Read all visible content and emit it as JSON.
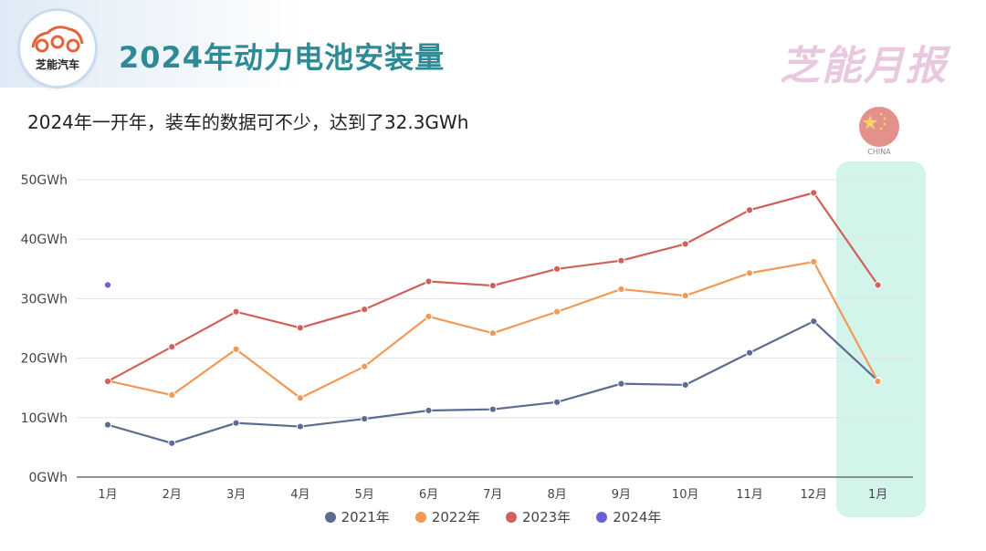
{
  "header": {
    "logo_text": "芝能汽车",
    "title": "2024年动力电池安装量",
    "brand": "芝能月报"
  },
  "subtitle": "2024年一开年，装车的数据可不少，达到了32.3GWh",
  "flag": {
    "label": "CHINA",
    "colors": [
      "#e3918a",
      "#f3d36b"
    ]
  },
  "highlight_color": "#d2f4ea",
  "chart_data": {
    "type": "line",
    "title": "2024年动力电池安装量",
    "categories": [
      "1月",
      "2月",
      "3月",
      "4月",
      "5月",
      "6月",
      "7月",
      "8月",
      "9月",
      "10月",
      "11月",
      "12月",
      "1月"
    ],
    "y_ticks": [
      "0GWh",
      "10GWh",
      "20GWh",
      "30GWh",
      "40GWh",
      "50GWh"
    ],
    "ylim": [
      0,
      50
    ],
    "grid": true,
    "legend_position": "bottom",
    "series": [
      {
        "name": "2021年",
        "color": "#5c6b91",
        "values": [
          8.8,
          5.7,
          9.1,
          8.5,
          9.8,
          11.2,
          11.4,
          12.6,
          15.7,
          15.5,
          20.9,
          26.2,
          16.2
        ]
      },
      {
        "name": "2022年",
        "color": "#f09a55",
        "values": [
          16.2,
          13.8,
          21.5,
          13.3,
          18.6,
          27.0,
          24.2,
          27.8,
          31.6,
          30.5,
          34.3,
          36.2,
          16.1
        ]
      },
      {
        "name": "2023年",
        "color": "#d0605a",
        "values": [
          16.1,
          21.9,
          27.8,
          25.1,
          28.2,
          32.9,
          32.2,
          35.0,
          36.4,
          39.2,
          44.9,
          47.8,
          32.3
        ]
      },
      {
        "name": "2024年",
        "color": "#6a5fd8",
        "values": [
          32.3,
          null,
          null,
          null,
          null,
          null,
          null,
          null,
          null,
          null,
          null,
          null,
          null
        ]
      }
    ]
  }
}
